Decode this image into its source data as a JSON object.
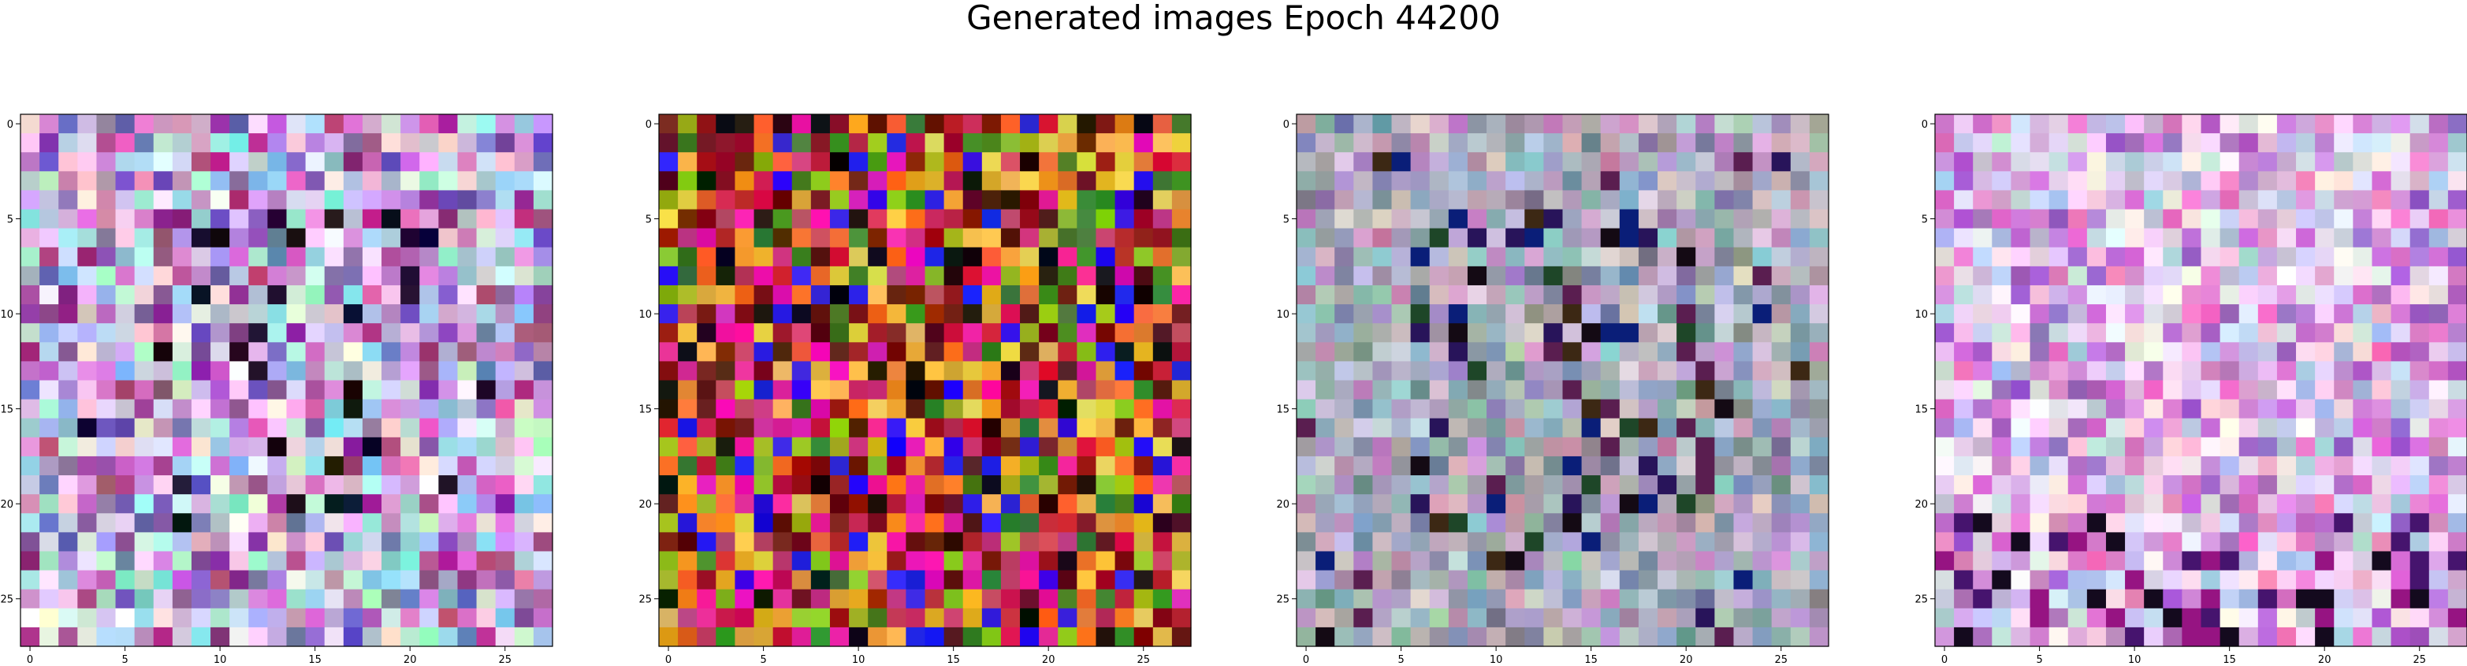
{
  "figure_title": "Generated images Epoch 44200",
  "chart_data": [
    {
      "type": "heatmap",
      "panel": 1,
      "grid_size": [
        28,
        28
      ],
      "palette": "pastel-mixed",
      "xticks": [
        "0",
        "5",
        "10",
        "15",
        "20",
        "25"
      ],
      "yticks": [
        "0",
        "5",
        "10",
        "15",
        "20",
        "25"
      ],
      "xlim": [
        -0.5,
        27.5
      ],
      "ylim": [
        27.5,
        -0.5
      ],
      "grid": false
    },
    {
      "type": "heatmap",
      "panel": 2,
      "grid_size": [
        28,
        28
      ],
      "palette": "saturated-warm",
      "xticks": [
        "0",
        "5",
        "10",
        "15",
        "20",
        "25"
      ],
      "yticks": [
        "0",
        "5",
        "10",
        "15",
        "20",
        "25"
      ],
      "xlim": [
        -0.5,
        27.5
      ],
      "ylim": [
        27.5,
        -0.5
      ],
      "grid": false
    },
    {
      "type": "heatmap",
      "panel": 3,
      "grid_size": [
        28,
        28
      ],
      "palette": "muted-gray",
      "xticks": [
        "0",
        "5",
        "10",
        "15",
        "20",
        "25"
      ],
      "yticks": [
        "0",
        "5",
        "10",
        "15",
        "20",
        "25"
      ],
      "xlim": [
        -0.5,
        27.5
      ],
      "ylim": [
        27.5,
        -0.5
      ],
      "grid": false
    },
    {
      "type": "heatmap",
      "panel": 4,
      "grid_size": [
        28,
        28
      ],
      "palette": "light-pink",
      "xticks": [
        "0",
        "5",
        "10",
        "15",
        "20",
        "25"
      ],
      "yticks": [
        "0",
        "5",
        "10",
        "15",
        "20",
        "25"
      ],
      "xlim": [
        -0.5,
        27.5
      ],
      "ylim": [
        27.5,
        -0.5
      ],
      "grid": false
    }
  ]
}
